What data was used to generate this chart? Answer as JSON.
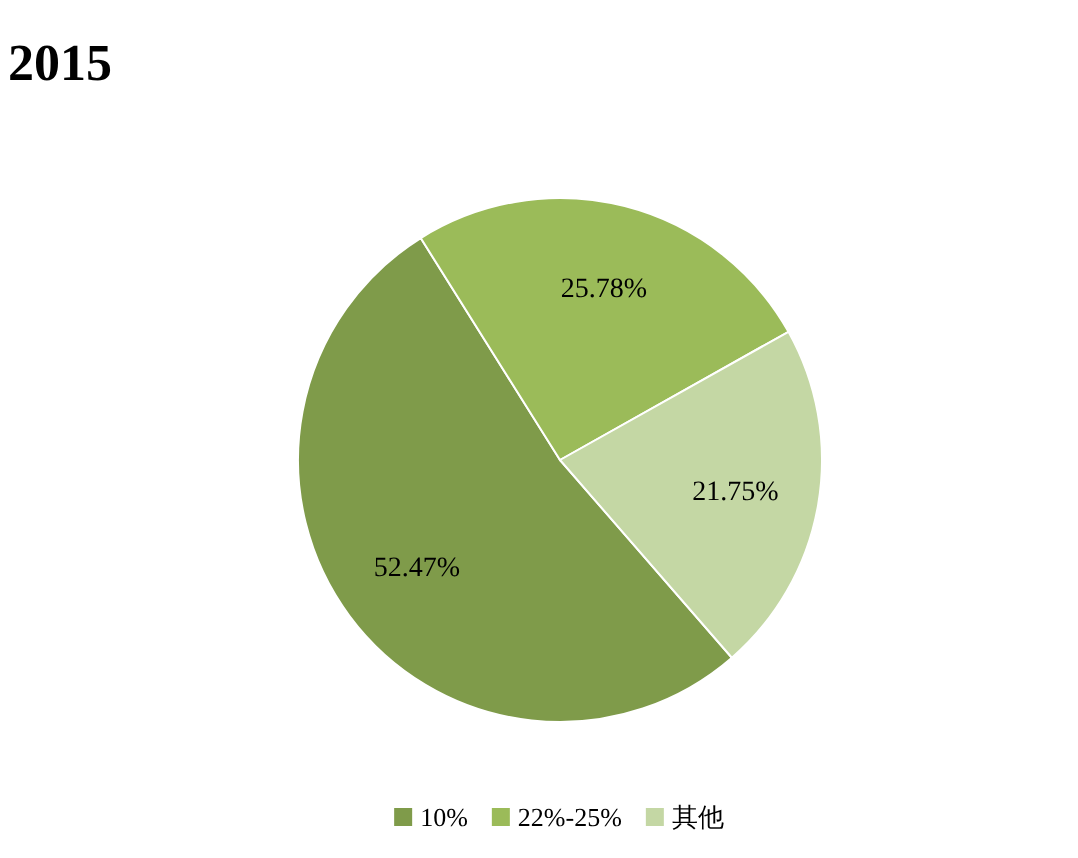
{
  "chart_data": {
    "type": "pie",
    "title": "2015",
    "categories": [
      "10%",
      "22%-25%",
      "其他"
    ],
    "values": [
      52.47,
      25.78,
      21.75
    ],
    "value_labels": [
      "52.47%",
      "25.78%",
      "21.75%"
    ],
    "colors": [
      "#7f9b4a",
      "#9bbb59",
      "#c4d7a4"
    ],
    "legend": "bottom"
  }
}
